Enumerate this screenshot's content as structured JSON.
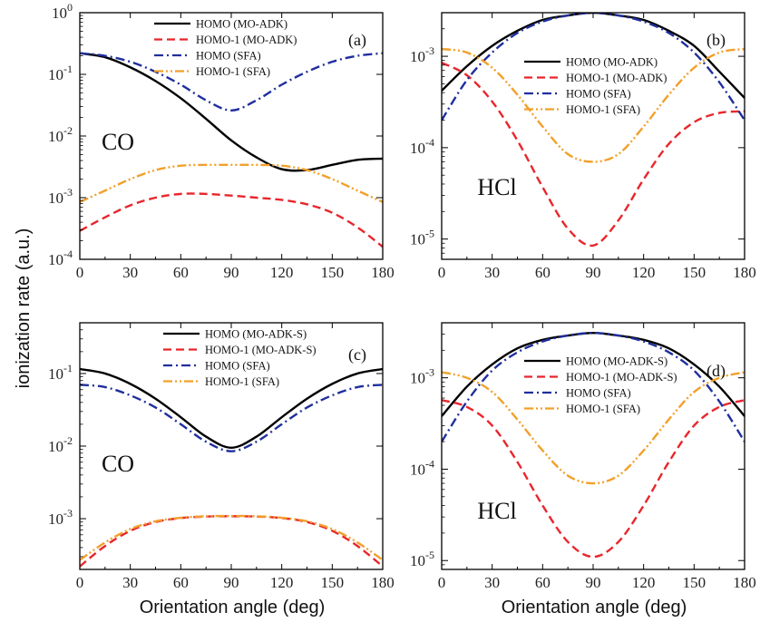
{
  "figure": {
    "ylabel": "ionization rate (a.u.)",
    "xlabel_left": "Orientation angle (deg)",
    "xlabel_right": "Orientation angle (deg)"
  },
  "colors": {
    "black": "#000000",
    "red": "#e8262c",
    "blue": "#1f2f9e",
    "orange": "#f2a02a"
  },
  "chart_data": [
    {
      "type": "line",
      "panel_label": "(a)",
      "molecule": "CO",
      "yscale": "log",
      "xlim": [
        0,
        180
      ],
      "ylim": [
        0.0001,
        1
      ],
      "xticks": [
        "0",
        "30",
        "60",
        "90",
        "120",
        "150",
        "180"
      ],
      "yticks": [
        {
          "v": 1,
          "base": "10",
          "exp": "0"
        },
        {
          "v": 0.1,
          "base": "10",
          "exp": "-1"
        },
        {
          "v": 0.01,
          "base": "10",
          "exp": "-2"
        },
        {
          "v": 0.001,
          "base": "10",
          "exp": "-3"
        },
        {
          "v": 0.0001,
          "base": "10",
          "exp": "-4"
        }
      ],
      "x": [
        0,
        15,
        30,
        45,
        60,
        75,
        90,
        105,
        120,
        135,
        150,
        165,
        180
      ],
      "series": [
        {
          "name": "HOMO (MO-ADK)",
          "style": "solid",
          "color": "#000000",
          "values": [
            0.22,
            0.19,
            0.13,
            0.078,
            0.041,
            0.019,
            0.0085,
            0.0045,
            0.0029,
            0.0028,
            0.0034,
            0.0041,
            0.0043
          ]
        },
        {
          "name": "HOMO-1 (MO-ADK)",
          "style": "dash",
          "color": "#e8262c",
          "values": [
            0.00029,
            0.00048,
            0.00075,
            0.001,
            0.00115,
            0.00115,
            0.00108,
            0.001,
            0.00092,
            0.00078,
            0.00057,
            0.00033,
            0.00016
          ]
        },
        {
          "name": "HOMO (SFA)",
          "style": "dashdot",
          "color": "#1f2f9e",
          "values": [
            0.22,
            0.2,
            0.16,
            0.11,
            0.068,
            0.038,
            0.026,
            0.038,
            0.068,
            0.11,
            0.16,
            0.2,
            0.22
          ]
        },
        {
          "name": "HOMO-1 (SFA)",
          "style": "dashdotdot",
          "color": "#f2a02a",
          "values": [
            0.00085,
            0.0013,
            0.002,
            0.0028,
            0.0033,
            0.0034,
            0.0034,
            0.0034,
            0.0033,
            0.0028,
            0.002,
            0.0013,
            0.00085
          ]
        }
      ]
    },
    {
      "type": "line",
      "panel_label": "(b)",
      "molecule": "HCl",
      "yscale": "log",
      "xlim": [
        0,
        180
      ],
      "ylim": [
        6e-06,
        0.003
      ],
      "xticks": [
        "0",
        "30",
        "60",
        "90",
        "120",
        "150",
        "180"
      ],
      "yticks": [
        {
          "v": 0.001,
          "base": "10",
          "exp": "-3"
        },
        {
          "v": 0.0001,
          "base": "10",
          "exp": "-4"
        },
        {
          "v": 1e-05,
          "base": "10",
          "exp": "-5"
        }
      ],
      "x": [
        0,
        15,
        30,
        45,
        60,
        75,
        90,
        105,
        120,
        135,
        150,
        165,
        180
      ],
      "series": [
        {
          "name": "HOMO (MO-ADK)",
          "style": "solid",
          "color": "#000000",
          "values": [
            0.00042,
            0.00078,
            0.0013,
            0.0019,
            0.0025,
            0.0028,
            0.003,
            0.0028,
            0.0025,
            0.0019,
            0.0013,
            0.00068,
            0.00035
          ]
        },
        {
          "name": "HOMO-1 (MO-ADK)",
          "style": "dash",
          "color": "#e8262c",
          "values": [
            0.00085,
            0.00062,
            0.00032,
            0.00012,
            3.7e-05,
            1.3e-05,
            8.5e-06,
            1.6e-05,
            4.5e-05,
            0.00011,
            0.00019,
            0.00024,
            0.00025
          ]
        },
        {
          "name": "HOMO (SFA)",
          "style": "dashdot",
          "color": "#1f2f9e",
          "values": [
            0.0002,
            0.00055,
            0.0011,
            0.0018,
            0.0024,
            0.0028,
            0.003,
            0.0028,
            0.0024,
            0.0018,
            0.0011,
            0.00052,
            0.0002
          ]
        },
        {
          "name": "HOMO-1 (SFA)",
          "style": "dashdotdot",
          "color": "#f2a02a",
          "values": [
            0.0012,
            0.0011,
            0.00075,
            0.00038,
            0.00017,
            8.5e-05,
            7e-05,
            8.5e-05,
            0.00017,
            0.00038,
            0.00075,
            0.0011,
            0.0012
          ]
        }
      ]
    },
    {
      "type": "line",
      "panel_label": "(c)",
      "molecule": "CO",
      "yscale": "log",
      "xlim": [
        0,
        180
      ],
      "ylim": [
        0.0002,
        0.5
      ],
      "xticks": [
        "0",
        "30",
        "60",
        "90",
        "120",
        "150",
        "180"
      ],
      "yticks": [
        {
          "v": 0.1,
          "base": "10",
          "exp": "-1"
        },
        {
          "v": 0.01,
          "base": "10",
          "exp": "-2"
        },
        {
          "v": 0.001,
          "base": "10",
          "exp": "-3"
        }
      ],
      "x": [
        0,
        15,
        30,
        45,
        60,
        75,
        90,
        105,
        120,
        135,
        150,
        165,
        180
      ],
      "series": [
        {
          "name": "HOMO (MO-ADK-S)",
          "style": "solid",
          "color": "#000000",
          "values": [
            0.115,
            0.1,
            0.072,
            0.045,
            0.025,
            0.0135,
            0.0095,
            0.0135,
            0.025,
            0.045,
            0.072,
            0.1,
            0.115
          ]
        },
        {
          "name": "HOMO-1 (MO-ADK-S)",
          "style": "dash",
          "color": "#e8262c",
          "values": [
            0.00022,
            0.00042,
            0.00068,
            0.0009,
            0.00102,
            0.00107,
            0.00108,
            0.00107,
            0.00102,
            0.0009,
            0.00068,
            0.00042,
            0.00022
          ]
        },
        {
          "name": "HOMO (SFA)",
          "style": "dashdot",
          "color": "#1f2f9e",
          "values": [
            0.07,
            0.065,
            0.05,
            0.034,
            0.02,
            0.0115,
            0.0085,
            0.0115,
            0.02,
            0.034,
            0.05,
            0.065,
            0.07
          ]
        },
        {
          "name": "HOMO-1 (SFA)",
          "style": "dashdotdot",
          "color": "#f2a02a",
          "values": [
            0.00027,
            0.00047,
            0.00072,
            0.00092,
            0.00103,
            0.00108,
            0.00109,
            0.00108,
            0.00103,
            0.00092,
            0.00072,
            0.00047,
            0.00027
          ]
        }
      ]
    },
    {
      "type": "line",
      "panel_label": "(d)",
      "molecule": "HCl",
      "yscale": "log",
      "xlim": [
        0,
        180
      ],
      "ylim": [
        8e-06,
        0.004
      ],
      "xticks": [
        "0",
        "30",
        "60",
        "90",
        "120",
        "150",
        "180"
      ],
      "yticks": [
        {
          "v": 0.001,
          "base": "10",
          "exp": "-3"
        },
        {
          "v": 0.0001,
          "base": "10",
          "exp": "-4"
        },
        {
          "v": 1e-05,
          "base": "10",
          "exp": "-5"
        }
      ],
      "x": [
        0,
        15,
        30,
        45,
        60,
        75,
        90,
        105,
        120,
        135,
        150,
        165,
        180
      ],
      "series": [
        {
          "name": "HOMO (MO-ADK-S)",
          "style": "solid",
          "color": "#000000",
          "values": [
            0.00038,
            0.0008,
            0.0014,
            0.0021,
            0.0026,
            0.0029,
            0.0031,
            0.0029,
            0.0026,
            0.0021,
            0.0014,
            0.0008,
            0.00038
          ]
        },
        {
          "name": "HOMO-1 (MO-ADK-S)",
          "style": "dash",
          "color": "#e8262c",
          "values": [
            0.00057,
            0.00048,
            0.0003,
            0.00012,
            4e-05,
            1.6e-05,
            1.1e-05,
            1.6e-05,
            4e-05,
            0.00012,
            0.0003,
            0.00048,
            0.00057
          ]
        },
        {
          "name": "HOMO (SFA)",
          "style": "dashdot",
          "color": "#1f2f9e",
          "values": [
            0.0002,
            0.00055,
            0.0012,
            0.0019,
            0.0025,
            0.0029,
            0.0031,
            0.0029,
            0.0025,
            0.0019,
            0.0012,
            0.00055,
            0.0002
          ]
        },
        {
          "name": "HOMO-1 (SFA)",
          "style": "dashdotdot",
          "color": "#f2a02a",
          "values": [
            0.00115,
            0.001,
            0.0007,
            0.00035,
            0.00016,
            8.5e-05,
            7e-05,
            8.5e-05,
            0.00016,
            0.00035,
            0.0007,
            0.001,
            0.00115
          ]
        }
      ]
    }
  ]
}
